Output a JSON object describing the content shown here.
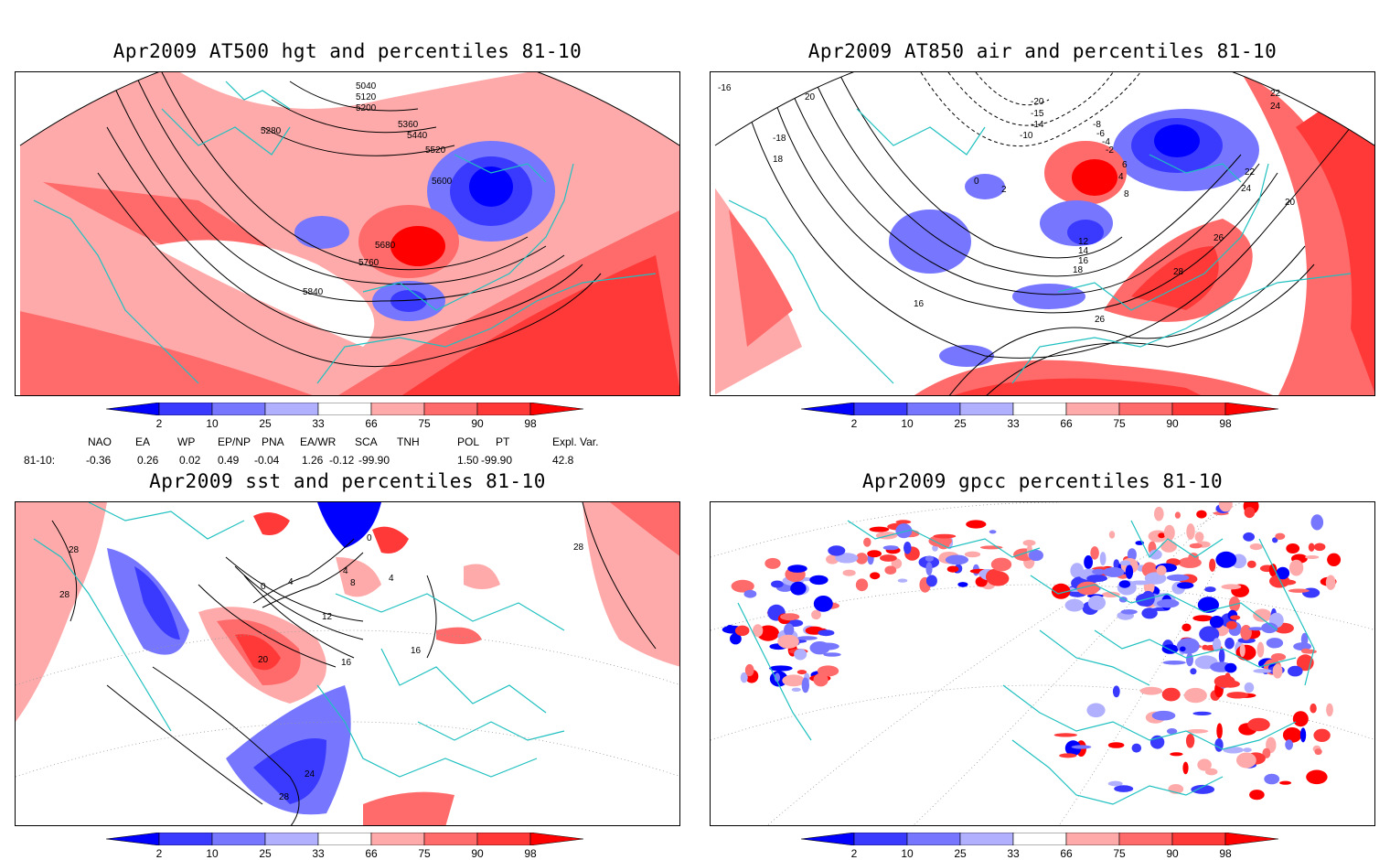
{
  "panels": [
    {
      "title": "Apr2009 AT500 hgt and percentiles 81-10",
      "contour_labels": [
        "5040",
        "5120",
        "5200",
        "5280",
        "5360",
        "5440",
        "5520",
        "5600",
        "5680",
        "5760",
        "5840"
      ]
    },
    {
      "title": "Apr2009 AT850 air and percentiles 81-10",
      "contour_labels": [
        "-16",
        "20",
        "-18",
        "18",
        "-20",
        "-15",
        "-14",
        "-10",
        "-8",
        "-6",
        "-4",
        "-2",
        "0",
        "2",
        "4",
        "6",
        "8",
        "12",
        "14",
        "16",
        "18",
        "22",
        "24",
        "26",
        "28",
        "20",
        "22",
        "24",
        "16",
        "26"
      ]
    },
    {
      "title": "Apr2009 sst and percentiles 81-10",
      "contour_labels": [
        "28",
        "28",
        "0",
        "4",
        "8",
        "4",
        "0",
        "4",
        "12",
        "20",
        "16",
        "16",
        "24",
        "28",
        "28"
      ]
    },
    {
      "title": "Apr2009 gpcc percentiles 81-10",
      "contour_labels": []
    }
  ],
  "colorbar": {
    "ticks": [
      "2",
      "10",
      "25",
      "33",
      "66",
      "75",
      "90",
      "98"
    ],
    "colors": [
      "#0000ff",
      "#3a3aff",
      "#7676ff",
      "#b0b0ff",
      "#ffffff",
      "#ffaaaa",
      "#ff6a6a",
      "#ff3838",
      "#ff0000"
    ]
  },
  "indices": {
    "headers": [
      "NAO",
      "EA",
      "WP",
      "EP/NP",
      "PNA",
      "EA/WR",
      "SCA",
      "TNH",
      "POL",
      "PT",
      "Expl. Var."
    ],
    "row_label": "81-10:",
    "values": [
      "-0.36",
      "0.26",
      "0.02",
      "0.49",
      "-0.04",
      "1.26",
      "-0.12",
      "-99.90",
      "1.50",
      "-99.90",
      "42.8"
    ]
  },
  "colors": {
    "land_border": "#20c0c0",
    "contour": "#000000",
    "grid": "#999999"
  }
}
